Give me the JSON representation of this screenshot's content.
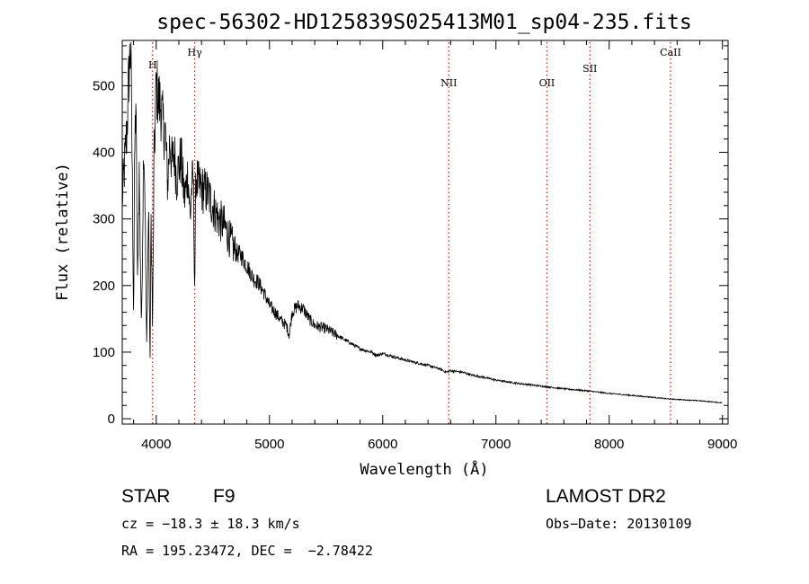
{
  "chart_data": {
    "type": "line",
    "title": "spec-56302-HD125839S025413M01_sp04-235.fits",
    "xlabel": "Wavelength (Å)",
    "ylabel": "Flux (relative)",
    "xlim": [
      3700,
      9050
    ],
    "ylim": [
      -8,
      568
    ],
    "xticks": [
      4000,
      5000,
      6000,
      7000,
      8000,
      9000
    ],
    "yticks": [
      0,
      100,
      200,
      300,
      400,
      500
    ],
    "grid": false,
    "line_color": "#000000",
    "marker_color": "#ff0000",
    "lines": [
      {
        "label": "H",
        "wavelength": 3968
      },
      {
        "label": "Hγ",
        "wavelength": 4340
      },
      {
        "label": "NII",
        "wavelength": 6584
      },
      {
        "label": "OII",
        "wavelength": 7450
      },
      {
        "label": "SII",
        "wavelength": 7830
      },
      {
        "label": "CaII",
        "wavelength": 8542
      }
    ],
    "series": [
      {
        "x": [
          3700,
          3720,
          3740,
          3760,
          3775,
          3790,
          3800,
          3810,
          3820,
          3835,
          3850,
          3870,
          3889,
          3900,
          3915,
          3933,
          3945,
          3955,
          3968,
          3980,
          4000,
          4020,
          4040,
          4060,
          4080,
          4101,
          4120,
          4140,
          4160,
          4180,
          4200,
          4220,
          4250,
          4280,
          4300,
          4315,
          4328,
          4340,
          4350,
          4370,
          4400,
          4450,
          4500,
          4550,
          4600,
          4650,
          4700,
          4750,
          4800,
          4861,
          4900,
          4950,
          5000,
          5050,
          5100,
          5150,
          5175,
          5200,
          5250,
          5300,
          5350,
          5400,
          5500,
          5600,
          5700,
          5800,
          5900,
          5950,
          6000,
          6100,
          6200,
          6300,
          6400,
          6500,
          6563,
          6600,
          6700,
          6800,
          6900,
          7000,
          7200,
          7400,
          7600,
          7800,
          8000,
          8200,
          8400,
          8500,
          8600,
          8800,
          9000
        ],
        "y": [
          330,
          380,
          430,
          520,
          560,
          350,
          150,
          400,
          480,
          200,
          370,
          130,
          420,
          350,
          100,
          320,
          75,
          300,
          130,
          380,
          500,
          480,
          470,
          440,
          430,
          350,
          420,
          380,
          400,
          360,
          380,
          390,
          330,
          370,
          300,
          350,
          360,
          190,
          370,
          350,
          345,
          340,
          320,
          300,
          290,
          270,
          250,
          245,
          230,
          210,
          205,
          190,
          170,
          160,
          148,
          140,
          125,
          160,
          170,
          165,
          150,
          140,
          135,
          125,
          115,
          105,
          100,
          95,
          98,
          93,
          88,
          84,
          80,
          75,
          70,
          72,
          70,
          65,
          62,
          58,
          53,
          49,
          45,
          42,
          38,
          35,
          32,
          30,
          29,
          27,
          24
        ]
      }
    ]
  },
  "info": {
    "object_type": "STAR",
    "subclass": "F9",
    "survey": "LAMOST DR2",
    "redshift": "cz = −18.3 ± 18.3 km/s",
    "obs_date": "Obs−Date: 20130109",
    "coords": "RA = 195.23472, DEC =  −2.78422"
  }
}
